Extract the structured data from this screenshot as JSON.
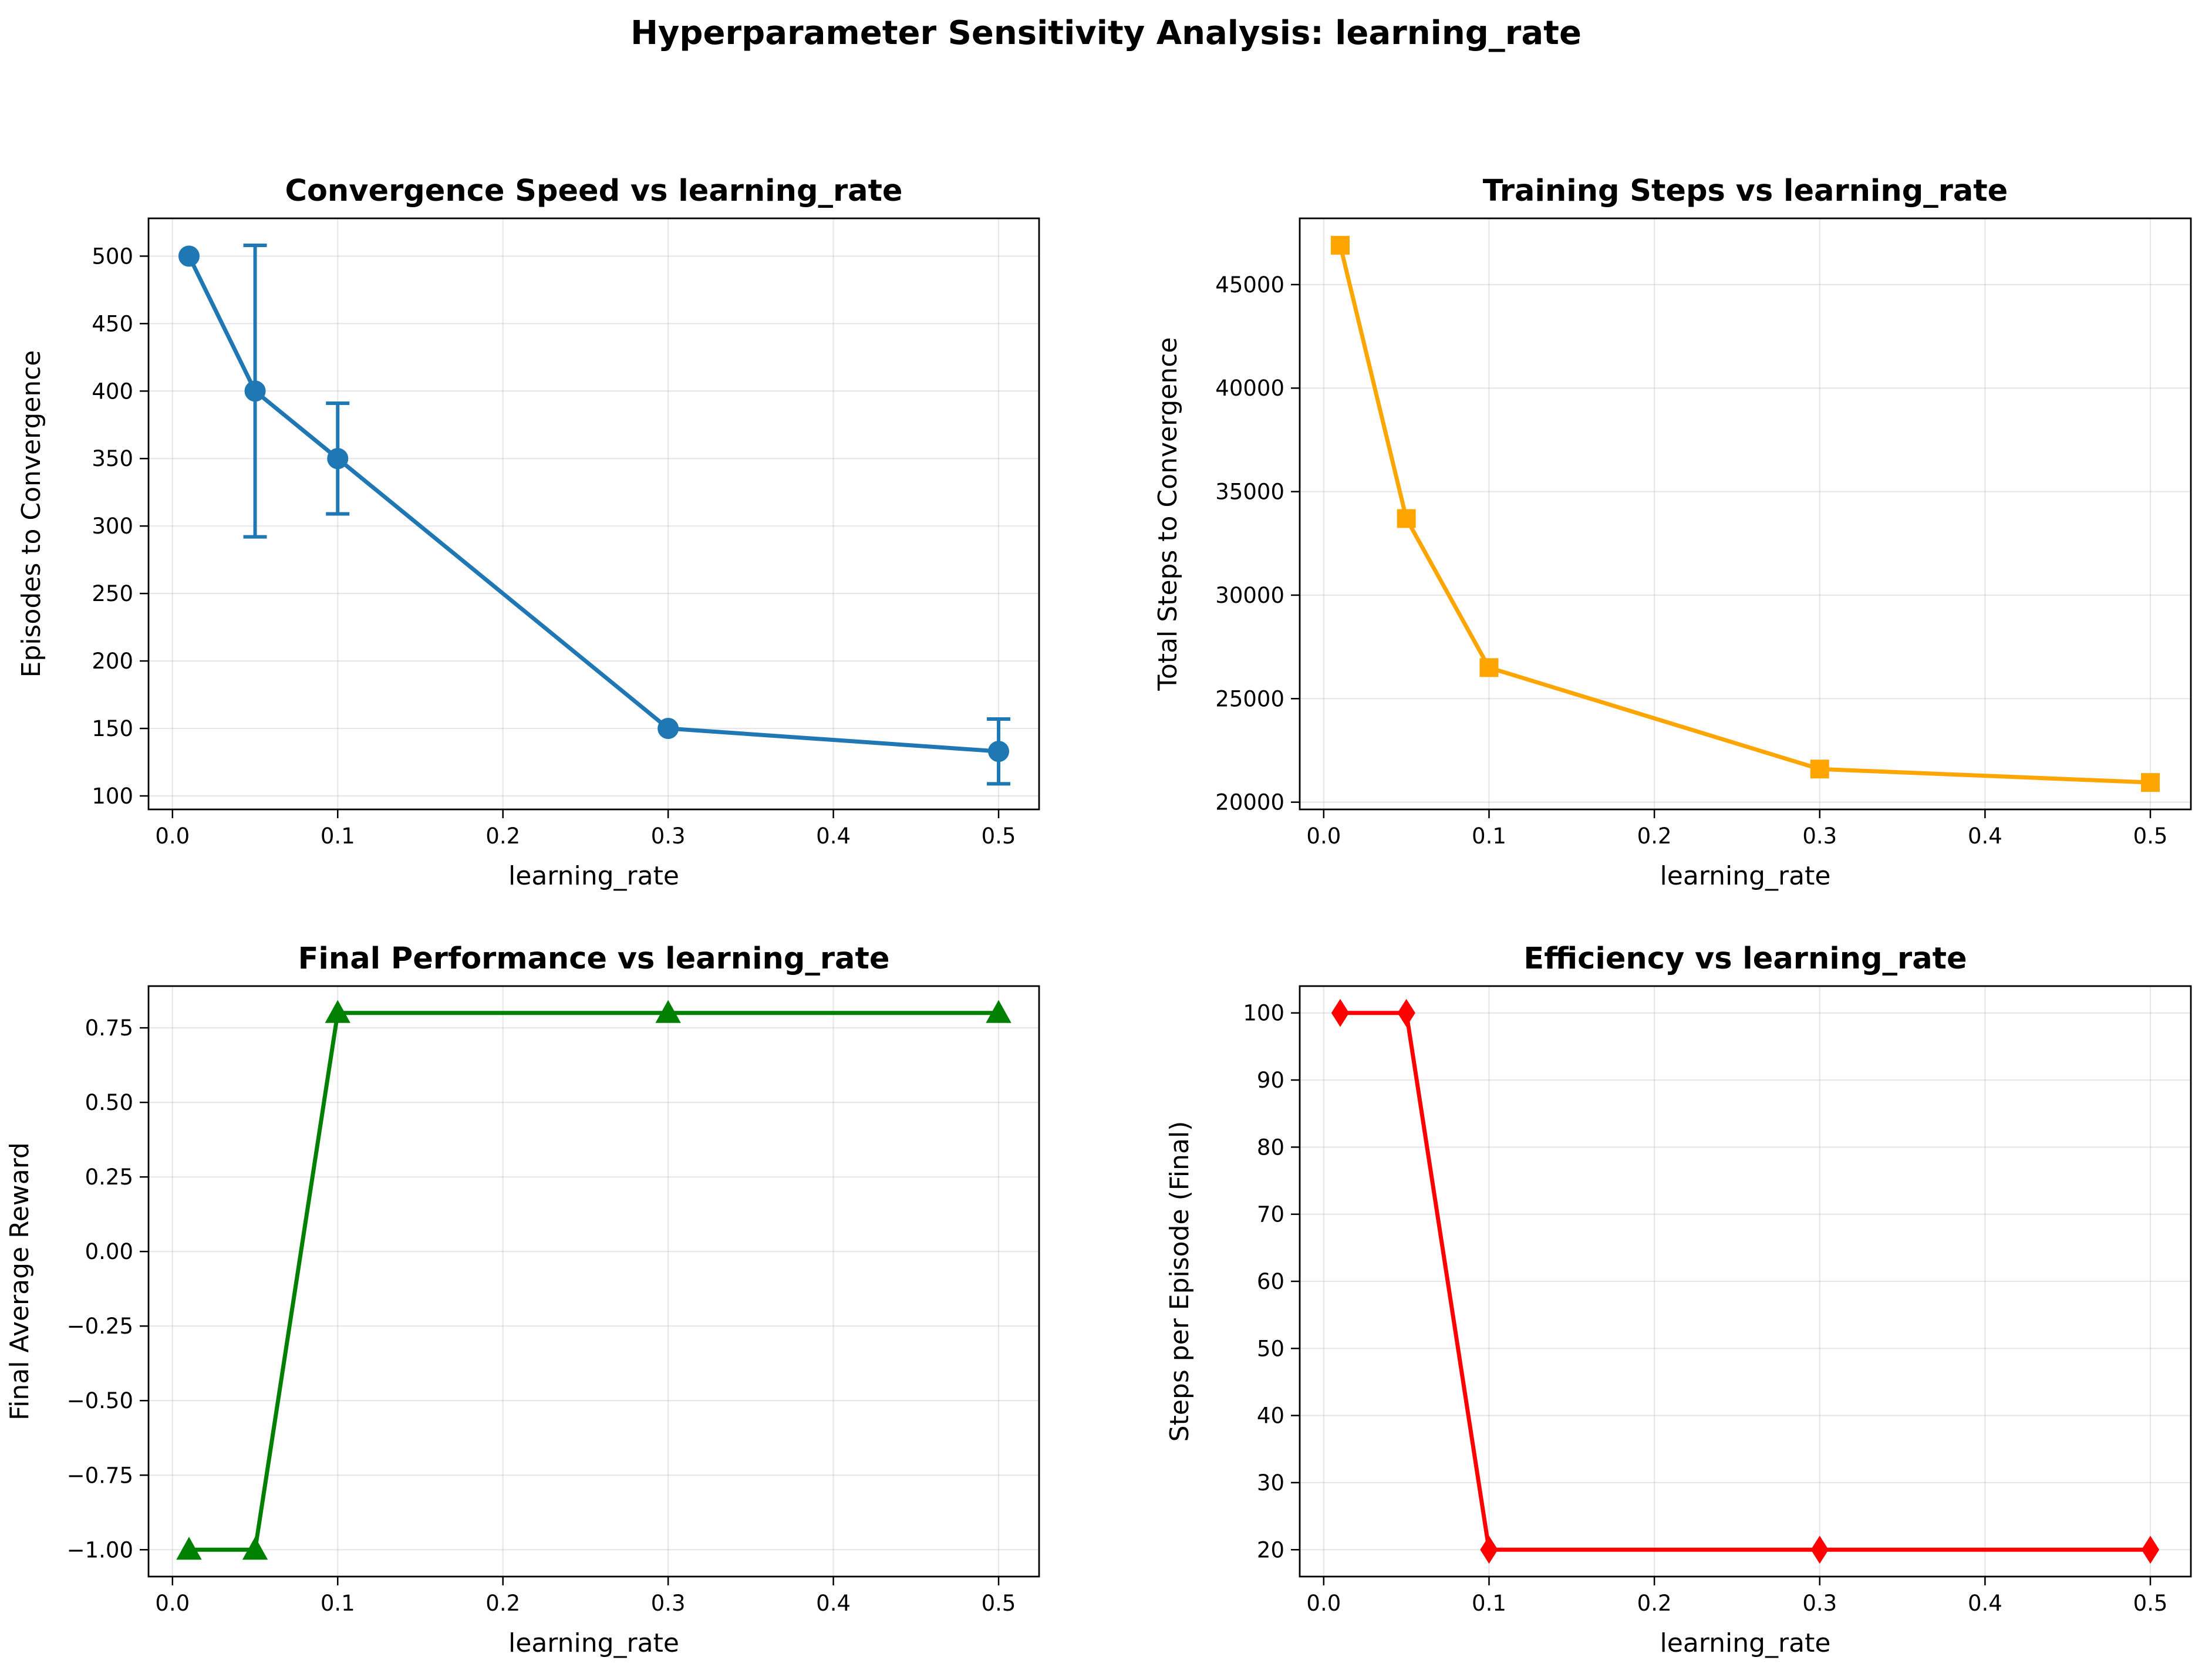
{
  "figure": {
    "suptitle": "Hyperparameter Sensitivity Analysis: learning_rate"
  },
  "chart_data": [
    {
      "type": "line",
      "title": "Convergence Speed vs learning_rate",
      "xlabel": "learning_rate",
      "ylabel": "Episodes to Convergence",
      "x": [
        0.01,
        0.05,
        0.1,
        0.3,
        0.5
      ],
      "series": [
        {
          "values": [
            500,
            400,
            350,
            150,
            133
          ],
          "error": [
            0,
            108,
            41,
            0,
            24
          ],
          "color": "#1f77b4",
          "marker": "circle"
        }
      ],
      "xlim": [
        -0.0145,
        0.5245
      ],
      "ylim": [
        90,
        528
      ],
      "xticks": [
        0.0,
        0.1,
        0.2,
        0.3,
        0.4,
        0.5
      ],
      "xtick_labels": [
        "0.0",
        "0.1",
        "0.2",
        "0.3",
        "0.4",
        "0.5"
      ],
      "yticks": [
        100,
        150,
        200,
        250,
        300,
        350,
        400,
        450,
        500
      ],
      "ytick_labels": [
        "100",
        "150",
        "200",
        "250",
        "300",
        "350",
        "400",
        "450",
        "500"
      ],
      "grid": true
    },
    {
      "type": "line",
      "title": "Training Steps vs learning_rate",
      "xlabel": "learning_rate",
      "ylabel": "Total Steps to Convergence",
      "x": [
        0.01,
        0.05,
        0.1,
        0.3,
        0.5
      ],
      "series": [
        {
          "values": [
            46900,
            33700,
            26500,
            21600,
            20950
          ],
          "color": "#ffa500",
          "marker": "square"
        }
      ],
      "xlim": [
        -0.0145,
        0.5245
      ],
      "ylim": [
        19650,
        48200
      ],
      "xticks": [
        0.0,
        0.1,
        0.2,
        0.3,
        0.4,
        0.5
      ],
      "xtick_labels": [
        "0.0",
        "0.1",
        "0.2",
        "0.3",
        "0.4",
        "0.5"
      ],
      "yticks": [
        20000,
        25000,
        30000,
        35000,
        40000,
        45000
      ],
      "ytick_labels": [
        "20000",
        "25000",
        "30000",
        "35000",
        "40000",
        "45000"
      ],
      "grid": true
    },
    {
      "type": "line",
      "title": "Final Performance vs learning_rate",
      "xlabel": "learning_rate",
      "ylabel": "Final Average Reward",
      "x": [
        0.01,
        0.05,
        0.1,
        0.3,
        0.5
      ],
      "series": [
        {
          "values": [
            -1.0,
            -1.0,
            0.8,
            0.8,
            0.8
          ],
          "color": "#008000",
          "marker": "triangle"
        }
      ],
      "xlim": [
        -0.0145,
        0.5245
      ],
      "ylim": [
        -1.09,
        0.89
      ],
      "xticks": [
        0.0,
        0.1,
        0.2,
        0.3,
        0.4,
        0.5
      ],
      "xtick_labels": [
        "0.0",
        "0.1",
        "0.2",
        "0.3",
        "0.4",
        "0.5"
      ],
      "yticks": [
        -1.0,
        -0.75,
        -0.5,
        -0.25,
        0.0,
        0.25,
        0.5,
        0.75
      ],
      "ytick_labels": [
        "−1.00",
        "−0.75",
        "−0.50",
        "−0.25",
        "0.00",
        "0.25",
        "0.50",
        "0.75"
      ],
      "grid": true
    },
    {
      "type": "line",
      "title": "Efficiency vs learning_rate",
      "xlabel": "learning_rate",
      "ylabel": "Steps per Episode (Final)",
      "x": [
        0.01,
        0.05,
        0.1,
        0.3,
        0.5
      ],
      "series": [
        {
          "values": [
            100,
            100,
            20,
            20,
            20
          ],
          "color": "#ff0000",
          "marker": "diamond"
        }
      ],
      "xlim": [
        -0.0145,
        0.5245
      ],
      "ylim": [
        16,
        104
      ],
      "xticks": [
        0.0,
        0.1,
        0.2,
        0.3,
        0.4,
        0.5
      ],
      "xtick_labels": [
        "0.0",
        "0.1",
        "0.2",
        "0.3",
        "0.4",
        "0.5"
      ],
      "yticks": [
        20,
        30,
        40,
        50,
        60,
        70,
        80,
        90,
        100
      ],
      "ytick_labels": [
        "20",
        "30",
        "40",
        "50",
        "60",
        "70",
        "80",
        "90",
        "100"
      ],
      "grid": true
    }
  ]
}
